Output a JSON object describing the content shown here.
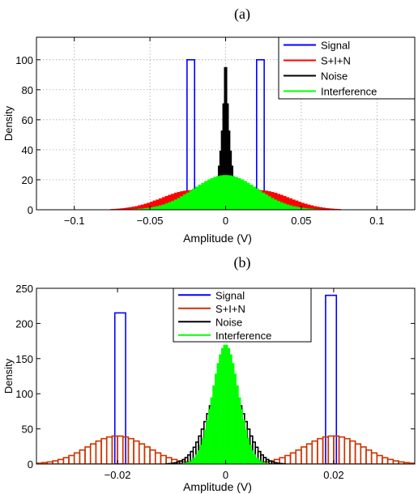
{
  "figure": {
    "panels": [
      {
        "label": "(a)"
      },
      {
        "label": "(b)"
      }
    ]
  },
  "chart_data": [
    {
      "type": "bar",
      "title": "(a)",
      "xlabel": "Amplitude (V)",
      "ylabel": "Density",
      "xlim": [
        -0.125,
        0.125
      ],
      "ylim": [
        0,
        115
      ],
      "xticks": [
        -0.1,
        -0.05,
        0,
        0.05,
        0.1
      ],
      "xtick_labels": [
        "−0.1",
        "−0.05",
        "0",
        "0.05",
        "0.1"
      ],
      "yticks": [
        0,
        20,
        40,
        60,
        80,
        100
      ],
      "ytick_labels": [
        "0",
        "20",
        "40",
        "60",
        "80",
        "100"
      ],
      "grid": true,
      "legend_position": "top-right",
      "legend": [
        "Signal",
        "S+I+N",
        "Noise",
        "Interference"
      ],
      "series": [
        {
          "name": "Signal",
          "color": "#0000ff",
          "style": "outline",
          "bins": [
            [
              -0.0255,
              -0.0205,
              100
            ],
            [
              0.0205,
              0.0255,
              100
            ]
          ]
        },
        {
          "name": "S+I+N",
          "color": "#ff0000",
          "style": "filled",
          "binwidth": 0.002,
          "shape": {
            "kind": "bimodal",
            "amp": 13,
            "centers": [
              -0.022,
              0.022
            ],
            "sigma": 0.02,
            "lo": -0.09,
            "hi": 0.09
          }
        },
        {
          "name": "Noise",
          "color": "#000000",
          "style": "filled",
          "binwidth": 0.001,
          "shape": {
            "kind": "laplace",
            "amp": 110,
            "center": 0,
            "scale": 0.0034,
            "lo": -0.02,
            "hi": 0.02
          }
        },
        {
          "name": "Interference",
          "color": "#00ff00",
          "style": "filled",
          "binwidth": 0.002,
          "shape": {
            "kind": "gauss",
            "amp": 23,
            "center": 0,
            "sigma": 0.021,
            "lo": -0.075,
            "hi": 0.075
          }
        }
      ]
    },
    {
      "type": "bar",
      "title": "(b)",
      "xlabel": "Amplitude (V)",
      "ylabel": "Density",
      "xlim": [
        -0.035,
        0.035
      ],
      "ylim": [
        0,
        250
      ],
      "xticks": [
        -0.02,
        0,
        0.02
      ],
      "xtick_labels": [
        "−0.02",
        "0",
        "0.02"
      ],
      "yticks": [
        0,
        50,
        100,
        150,
        200,
        250
      ],
      "ytick_labels": [
        "0",
        "50",
        "100",
        "150",
        "200",
        "250"
      ],
      "grid": false,
      "legend_position": "top-center",
      "legend": [
        "Signal",
        "S+I+N",
        "Noise",
        "Interference"
      ],
      "series": [
        {
          "name": "Signal",
          "color": "#0000ff",
          "style": "outline",
          "bins": [
            [
              -0.0205,
              -0.0185,
              215
            ],
            [
              0.0185,
              0.0205,
              240
            ]
          ]
        },
        {
          "name": "S+I+N",
          "color": "#cc3300",
          "style": "outline",
          "binwidth": 0.001,
          "shape": {
            "kind": "bimodal",
            "amp": 40,
            "centers": [
              -0.02,
              0.02
            ],
            "sigma": 0.0055,
            "lo": -0.035,
            "hi": 0.035
          }
        },
        {
          "name": "Noise",
          "color": "#000000",
          "style": "outline",
          "binwidth": 0.0005,
          "shape": {
            "kind": "gauss",
            "amp": 120,
            "center": 0,
            "sigma": 0.0032,
            "lo": -0.011,
            "hi": 0.011
          }
        },
        {
          "name": "Interference",
          "color": "#00ff00",
          "style": "filled",
          "binwidth": 0.0004,
          "shape": {
            "kind": "gauss",
            "amp": 170,
            "center": 0,
            "sigma": 0.0024,
            "lo": -0.008,
            "hi": 0.008
          }
        }
      ]
    }
  ]
}
